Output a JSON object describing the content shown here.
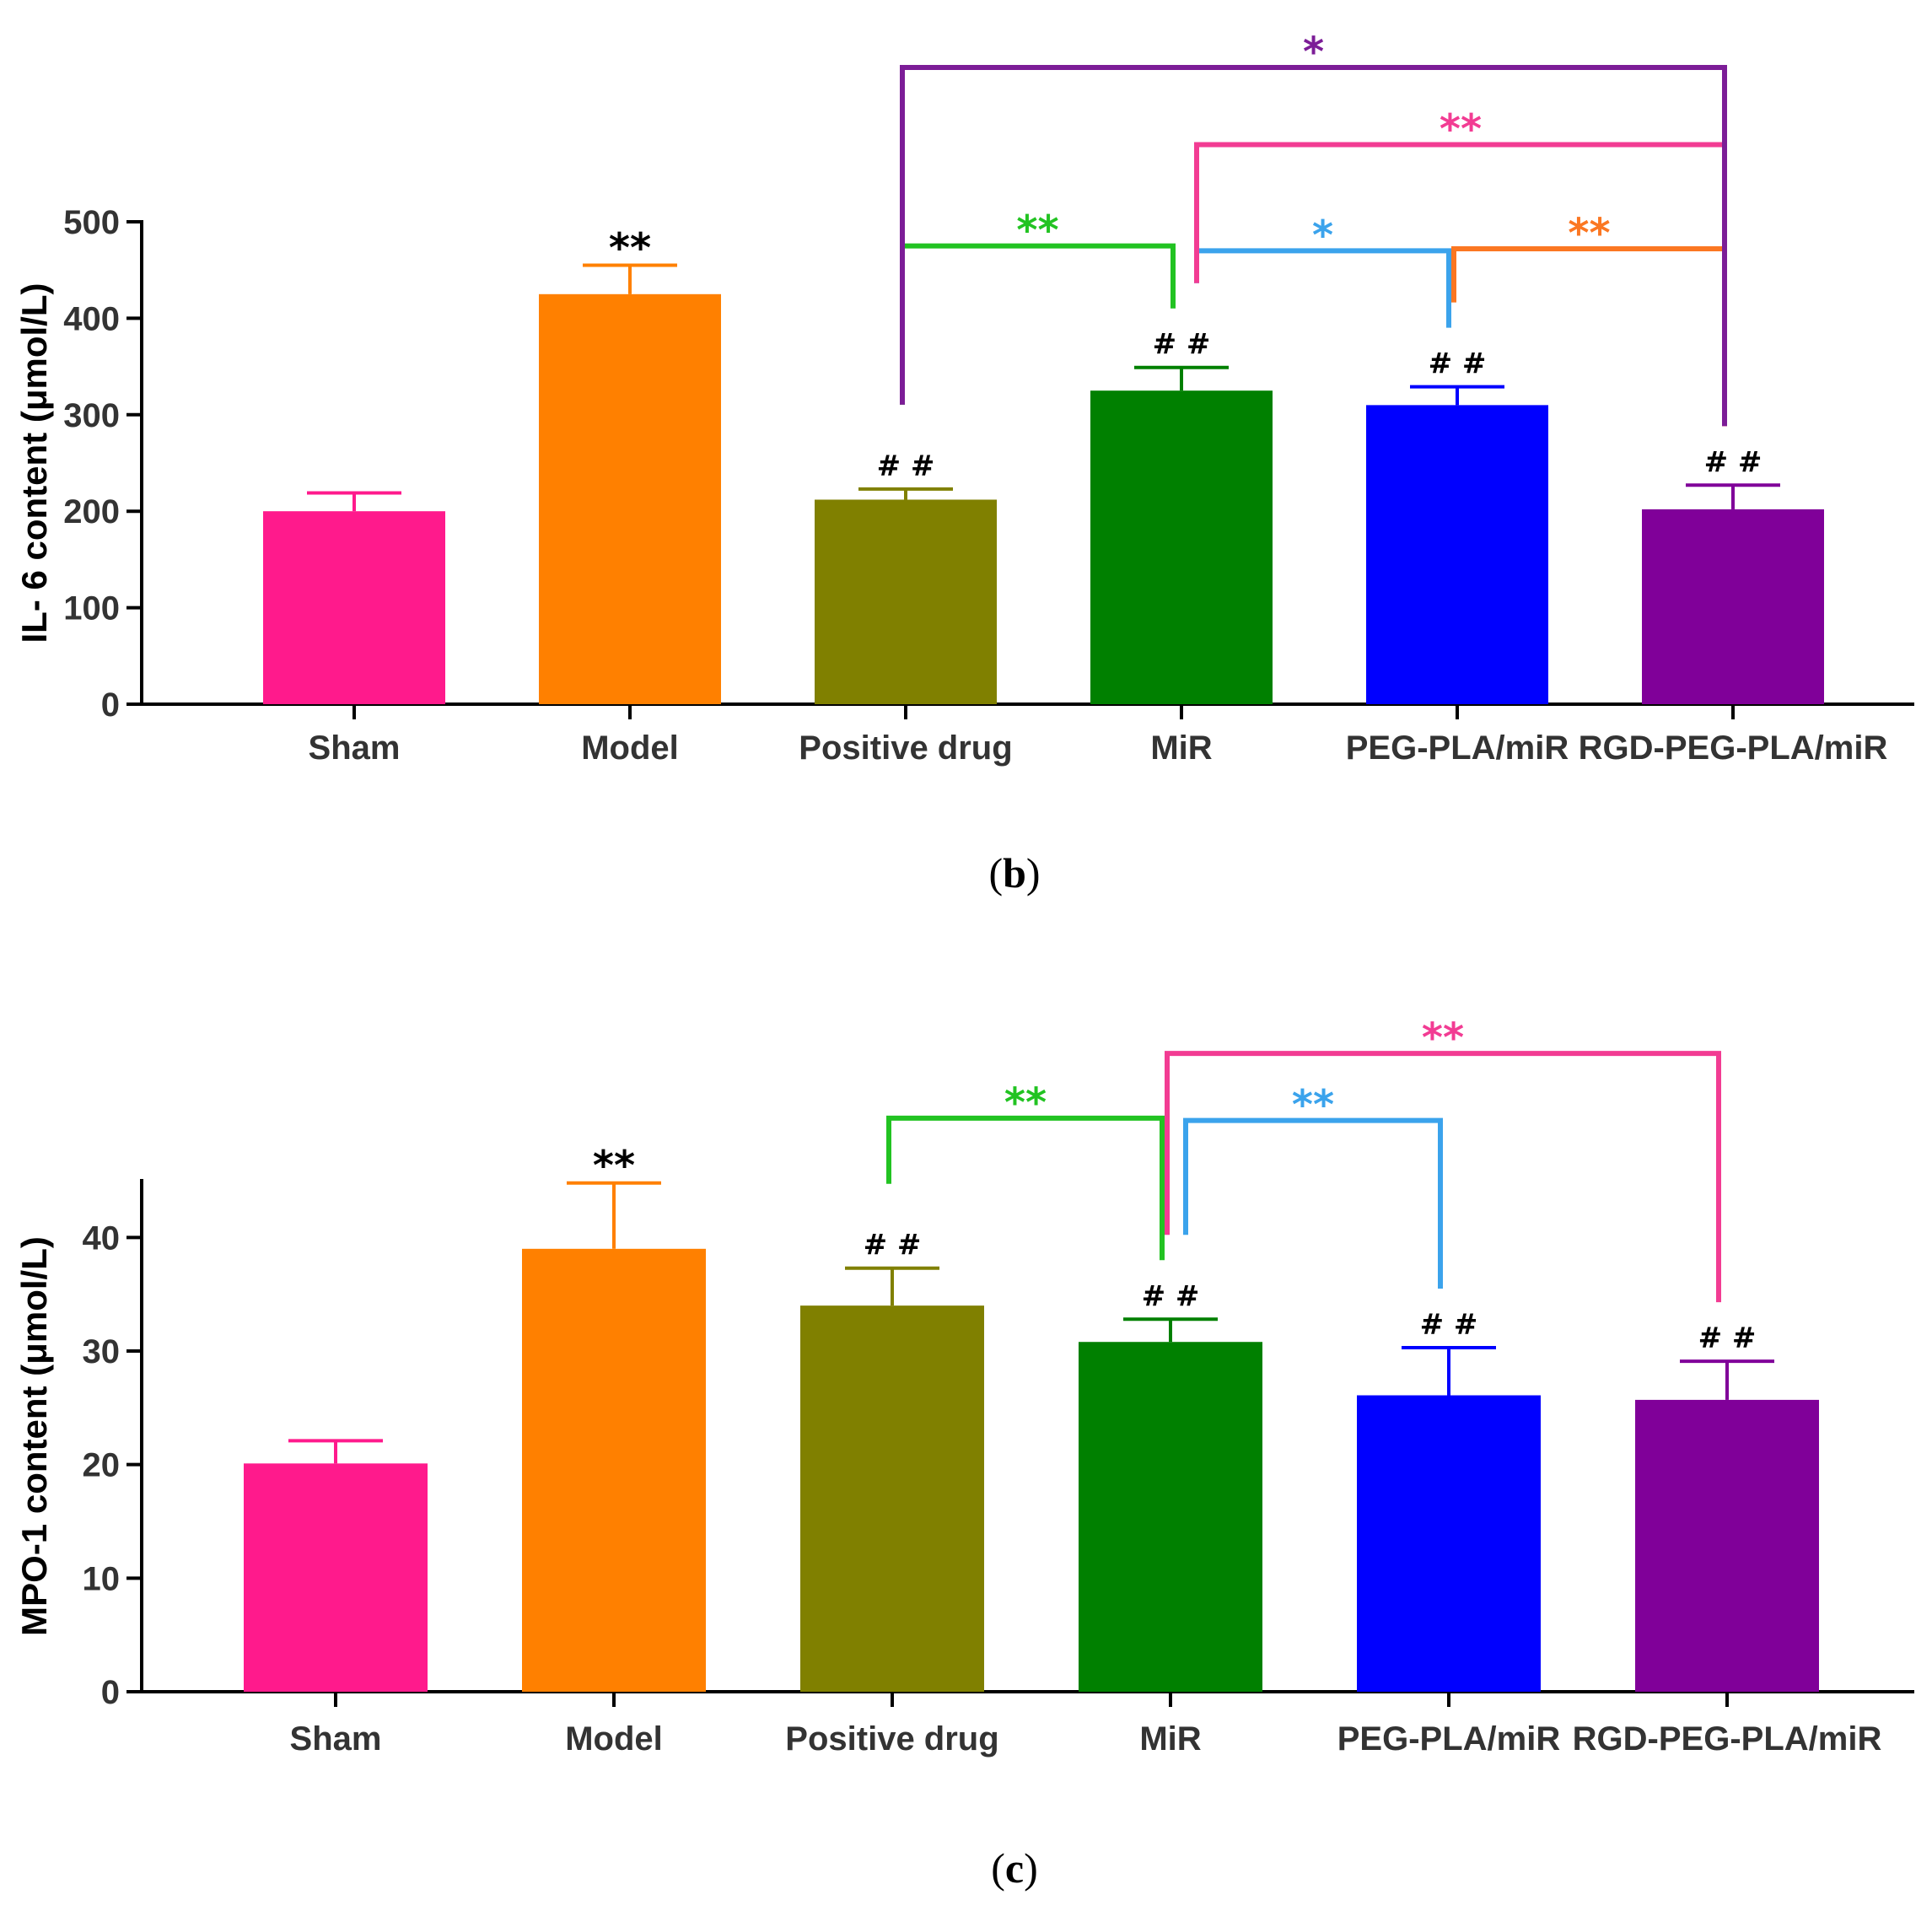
{
  "chart_data": [
    {
      "type": "bar",
      "panel_label": {
        "open": "(",
        "letter": "b",
        "close": ")"
      },
      "title": "",
      "xlabel": "",
      "ylabel": "IL- 6 content (μmol/L)",
      "ylim": [
        0,
        500
      ],
      "yticks": [
        0,
        100,
        200,
        300,
        400,
        500
      ],
      "categories": [
        "Sham",
        "Model",
        "Positive drug",
        "MiR",
        "PEG-PLA/miR",
        "RGD-PEG-PLA/miR"
      ],
      "values": [
        200,
        425,
        212,
        325,
        310,
        202
      ],
      "errors": [
        19,
        30,
        11,
        24,
        19,
        25
      ],
      "colors": [
        "#ff1a8c",
        "#ff8000",
        "#808000",
        "#008000",
        "#0000ff",
        "#800099"
      ],
      "bar_annotations": [
        "",
        "**",
        "# #",
        "# #",
        "# #",
        "# #"
      ],
      "bar_annotation_colors": [
        "#000000",
        "#000000",
        "#000000",
        "#000000",
        "#000000",
        "#000000"
      ],
      "comparisons": [
        {
          "from": 2,
          "to": 3,
          "label": "**",
          "color": "#22c322",
          "level": 475
        },
        {
          "from": 3,
          "to": 4,
          "label": "*",
          "color": "#3ba3ec",
          "level": 470
        },
        {
          "from": 4,
          "to": 5,
          "label": "**",
          "color": "#fb7722",
          "level": 472
        },
        {
          "from": 3,
          "to": 5,
          "label": "**",
          "color": "#f23c93",
          "level": 580
        },
        {
          "from": 2,
          "to": 5,
          "label": "*",
          "color": "#7c1d97",
          "level": 660
        }
      ]
    },
    {
      "type": "bar",
      "panel_label": {
        "open": "(",
        "letter": "c",
        "close": ")"
      },
      "title": "",
      "xlabel": "",
      "ylabel": "MPO-1 content (μmol/L)",
      "ylim": [
        0,
        45
      ],
      "yticks": [
        0,
        10,
        20,
        30,
        40
      ],
      "categories": [
        "Sham",
        "Model",
        "Positive drug",
        "MiR",
        "PEG-PLA/miR",
        "RGD-PEG-PLA/miR"
      ],
      "values": [
        20.1,
        39,
        34,
        30.8,
        26.1,
        25.7
      ],
      "errors": [
        2,
        5.8,
        3.3,
        2,
        4.2,
        3.4
      ],
      "colors": [
        "#ff1a8c",
        "#ff8000",
        "#808000",
        "#008000",
        "#0000ff",
        "#800099"
      ],
      "bar_annotations": [
        "",
        "**",
        "# #",
        "# #",
        "# #",
        "# #"
      ],
      "bar_annotation_colors": [
        "#000000",
        "#000000",
        "#000000",
        "#000000",
        "#000000",
        "#000000"
      ],
      "comparisons": [
        {
          "from": 2,
          "to": 3,
          "label": "**",
          "color": "#22c322",
          "level": 50.5
        },
        {
          "from": 3,
          "to": 4,
          "label": "**",
          "color": "#3ba3ec",
          "level": 50.3
        },
        {
          "from": 3,
          "to": 5,
          "label": "**",
          "color": "#f23c93",
          "level": 56.2
        }
      ]
    }
  ]
}
